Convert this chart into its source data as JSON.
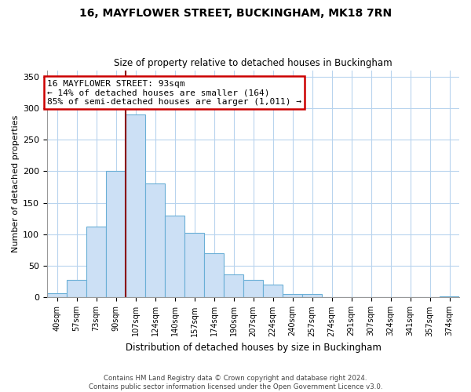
{
  "title": "16, MAYFLOWER STREET, BUCKINGHAM, MK18 7RN",
  "subtitle": "Size of property relative to detached houses in Buckingham",
  "xlabel": "Distribution of detached houses by size in Buckingham",
  "ylabel": "Number of detached properties",
  "bin_labels": [
    "40sqm",
    "57sqm",
    "73sqm",
    "90sqm",
    "107sqm",
    "124sqm",
    "140sqm",
    "157sqm",
    "174sqm",
    "190sqm",
    "207sqm",
    "224sqm",
    "240sqm",
    "257sqm",
    "274sqm",
    "291sqm",
    "307sqm",
    "324sqm",
    "341sqm",
    "357sqm",
    "374sqm"
  ],
  "bar_heights": [
    7,
    28,
    112,
    200,
    290,
    180,
    130,
    103,
    70,
    36,
    28,
    20,
    6,
    5,
    1,
    0,
    0,
    0,
    0,
    0,
    2
  ],
  "bar_color": "#cce0f5",
  "bar_edge_color": "#6aafd6",
  "vline_x": 3.5,
  "vline_color": "#8b0000",
  "annotation_text": "16 MAYFLOWER STREET: 93sqm\n← 14% of detached houses are smaller (164)\n85% of semi-detached houses are larger (1,011) →",
  "annotation_box_color": "#ffffff",
  "annotation_box_edge": "#cc0000",
  "ylim": [
    0,
    360
  ],
  "yticks": [
    0,
    50,
    100,
    150,
    200,
    250,
    300,
    350
  ],
  "footer_text": "Contains HM Land Registry data © Crown copyright and database right 2024.\nContains public sector information licensed under the Open Government Licence v3.0.",
  "bg_color": "#ffffff",
  "grid_color": "#b8d4ee"
}
